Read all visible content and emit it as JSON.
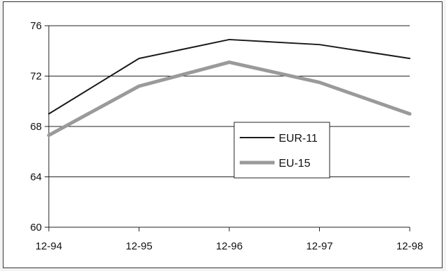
{
  "chart_data": {
    "type": "line",
    "title": "",
    "xlabel": "",
    "ylabel": "",
    "categories": [
      "12-94",
      "12-95",
      "12-96",
      "12-97",
      "12-98"
    ],
    "ylim": [
      60,
      76
    ],
    "yticks": [
      60,
      64,
      68,
      72,
      76
    ],
    "grid": true,
    "legend_position": "center-right",
    "series": [
      {
        "name": "EUR-11",
        "values": [
          69.0,
          73.4,
          74.9,
          74.5,
          73.4
        ],
        "color": "#1a1a1a"
      },
      {
        "name": "EU-15",
        "values": [
          67.3,
          71.2,
          73.1,
          71.5,
          69.0
        ],
        "color": "#9a9a9a"
      }
    ]
  }
}
